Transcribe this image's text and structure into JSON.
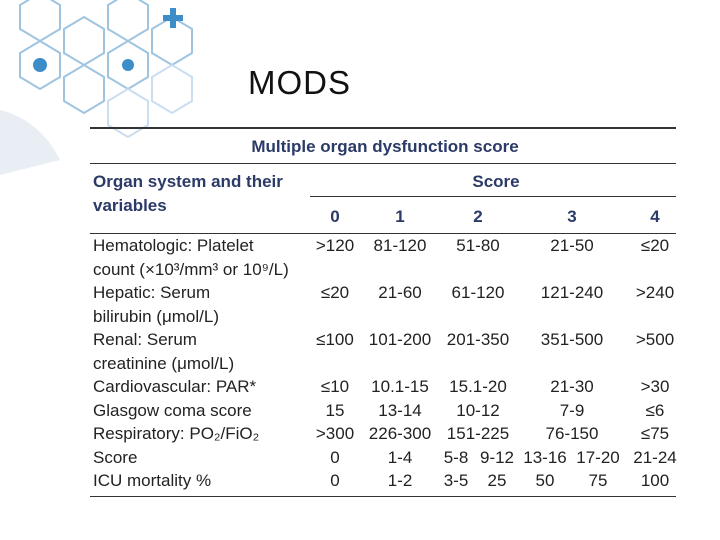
{
  "slide_title": "MODS",
  "table": {
    "title": "Multiple organ dysfunction score",
    "header": {
      "variables": [
        "Organ system and their",
        "variables"
      ],
      "score": "Score",
      "columns": [
        "0",
        "1",
        "2",
        "3",
        "4"
      ]
    },
    "rows": [
      {
        "label": [
          "Hematologic: Platelet",
          "count (×10³/mm³ or 10⁹/L)"
        ],
        "cells": [
          ">120",
          "81-120",
          "51-80",
          "21-50",
          "≤20"
        ]
      },
      {
        "label": [
          "Hepatic: Serum",
          "bilirubin (μmol/L)"
        ],
        "cells": [
          "≤20",
          "21-60",
          "61-120",
          "121-240",
          ">240"
        ]
      },
      {
        "label": [
          "Renal: Serum",
          "creatinine (μmol/L)"
        ],
        "cells": [
          "≤100",
          "101-200",
          "201-350",
          "351-500",
          ">500"
        ]
      },
      {
        "label": [
          "Cardiovascular: PAR*"
        ],
        "cells": [
          "≤10",
          "10.1-15",
          "15.1-20",
          "21-30",
          ">30"
        ]
      },
      {
        "label": [
          "Glasgow coma score"
        ],
        "cells": [
          "15",
          "13-14",
          "10-12",
          "7-9",
          "≤6"
        ]
      },
      {
        "label": [
          "Respiratory: PO₂/FiO₂"
        ],
        "cells": [
          ">300",
          "226-300",
          "151-225",
          "76-150",
          "≤75"
        ]
      }
    ],
    "summary_rows": [
      {
        "label": "Score",
        "cells": [
          "0",
          "1-4",
          "5-8",
          "9-12",
          "13-16",
          "17-20",
          "21-24"
        ]
      },
      {
        "label": "ICU mortality %",
        "cells": [
          "0",
          "1-2",
          "3-5",
          "25",
          "50",
          "75",
          "100"
        ]
      }
    ]
  }
}
